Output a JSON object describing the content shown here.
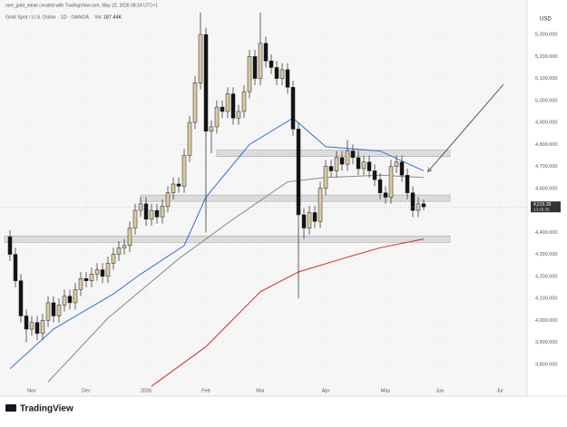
{
  "header": {
    "credit": "rare_gold_steak created with TradingView.com, May 22, 2026 08:14 UTC+1",
    "brand": "TradingView"
  },
  "chart_data": {
    "type": "candlestick",
    "legend": "Gold Spot / U.S. Dollar · 1D · OANDA",
    "volume_label": "Vol",
    "volume": "187.44K",
    "currency": "USD",
    "open": [
      4380,
      4300,
      4180,
      4020,
      3960,
      3990,
      3940,
      4000,
      4080,
      4020,
      4070,
      4110,
      4080,
      4140,
      4190,
      4180,
      4210,
      4230,
      4200,
      4260,
      4300,
      4330,
      4340,
      4420,
      4500,
      4530,
      4460,
      4500,
      4470,
      4520,
      4580,
      4620,
      4610,
      4750,
      4900,
      5080,
      5300,
      4860,
      4880,
      4970,
      4950,
      5030,
      4920,
      4950,
      5040,
      5200,
      5100,
      5260,
      5180,
      5150,
      5100,
      5140,
      5060,
      4870,
      4480,
      4420,
      4490,
      4450,
      4600,
      4700,
      4680,
      4740,
      4710,
      4770,
      4740,
      4690,
      4720,
      4680,
      4640,
      4580,
      4560,
      4700,
      4720,
      4660,
      4580,
      4500,
      4530
    ],
    "high": [
      4410,
      4330,
      4210,
      4050,
      4020,
      4020,
      4030,
      4110,
      4110,
      4100,
      4140,
      4140,
      4170,
      4220,
      4220,
      4240,
      4260,
      4260,
      4290,
      4330,
      4360,
      4370,
      4450,
      4530,
      4560,
      4560,
      4530,
      4530,
      4550,
      4610,
      4650,
      4650,
      4780,
      4930,
      5110,
      5400,
      5330,
      4910,
      5000,
      5000,
      5060,
      5060,
      4980,
      5070,
      5230,
      5230,
      5400,
      5290,
      5210,
      5180,
      5170,
      5170,
      5090,
      4900,
      4510,
      4520,
      4520,
      4630,
      4730,
      4730,
      4770,
      4770,
      4820,
      4800,
      4770,
      4750,
      4750,
      4710,
      4670,
      4610,
      4730,
      4750,
      4750,
      4690,
      4610,
      4560,
      4550
    ],
    "low": [
      4270,
      4150,
      3990,
      3900,
      3930,
      3910,
      3910,
      3970,
      3990,
      3990,
      4040,
      4050,
      4050,
      4110,
      4150,
      4150,
      4180,
      4170,
      4170,
      4230,
      4270,
      4300,
      4310,
      4390,
      4470,
      4430,
      4430,
      4440,
      4440,
      4490,
      4550,
      4580,
      4580,
      4720,
      4870,
      5050,
      4400,
      4760,
      4850,
      4920,
      4920,
      4890,
      4890,
      4920,
      5010,
      5070,
      5070,
      5150,
      5120,
      5070,
      5070,
      5030,
      4840,
      4100,
      4370,
      4390,
      4420,
      4420,
      4570,
      4650,
      4650,
      4680,
      4680,
      4710,
      4660,
      4660,
      4650,
      4610,
      4550,
      4530,
      4530,
      4670,
      4630,
      4550,
      4470,
      4470,
      4500
    ],
    "close": [
      4300,
      4180,
      4020,
      3960,
      3990,
      3940,
      4000,
      4080,
      4020,
      4070,
      4110,
      4080,
      4140,
      4190,
      4180,
      4210,
      4230,
      4200,
      4260,
      4300,
      4330,
      4340,
      4420,
      4500,
      4530,
      4460,
      4500,
      4470,
      4520,
      4580,
      4620,
      4610,
      4750,
      4900,
      5080,
      5300,
      4860,
      4880,
      4970,
      4950,
      5030,
      4920,
      4950,
      5040,
      5200,
      5100,
      5260,
      5180,
      5150,
      5100,
      5140,
      5060,
      4870,
      4480,
      4420,
      4490,
      4450,
      4600,
      4700,
      4680,
      4740,
      4710,
      4770,
      4740,
      4690,
      4720,
      4680,
      4640,
      4580,
      4560,
      4700,
      4720,
      4660,
      4580,
      4500,
      4530,
      4516
    ],
    "up_color": "#d9c9a3",
    "down_color": "#131313",
    "series": [
      {
        "color": "#2f6fdb",
        "x": [
          0,
          8,
          19,
          24,
          32,
          36,
          44,
          52,
          58,
          68,
          76
        ],
        "values": [
          3780,
          3960,
          4120,
          4210,
          4340,
          4560,
          4800,
          4920,
          4790,
          4770,
          4680
        ]
      },
      {
        "color": "#8a8a8a",
        "x": [
          7,
          18,
          31,
          41,
          51,
          58,
          68,
          76
        ],
        "values": [
          3720,
          4010,
          4280,
          4460,
          4630,
          4650,
          4660,
          4650
        ]
      },
      {
        "color": "#d62828",
        "x": [
          26,
          36,
          46,
          53,
          61,
          68,
          76
        ],
        "values": [
          3700,
          3880,
          4130,
          4220,
          4280,
          4330,
          4370
        ]
      }
    ],
    "zones": [
      {
        "from": 38,
        "low": 4745,
        "high": 4774
      },
      {
        "from": 24,
        "low": 4541,
        "high": 4570
      },
      {
        "from": -1,
        "low": 4355,
        "high": 4384
      }
    ],
    "price_tag": {
      "value": 4516,
      "label": "4,516.35",
      "countdown": "13:45:35"
    },
    "xlim": [
      -1,
      95
    ],
    "ylim": [
      3655,
      5457
    ],
    "xticks": [
      {
        "value": 4,
        "label": "Nov"
      },
      {
        "value": 14,
        "label": "Dec"
      },
      {
        "value": 25,
        "label": "2026"
      },
      {
        "value": 36,
        "label": "Feb"
      },
      {
        "value": 46,
        "label": "Mar"
      },
      {
        "value": 58,
        "label": "Apr"
      },
      {
        "value": 69,
        "label": "May"
      },
      {
        "value": 79,
        "label": "Jun"
      },
      {
        "value": 90,
        "label": "Jul"
      }
    ],
    "yticks": [
      {
        "value": 3800,
        "label": "3,800.000"
      },
      {
        "value": 3900,
        "label": "3,900.000"
      },
      {
        "value": 4000,
        "label": "4,000.000"
      },
      {
        "value": 4100,
        "label": "4,100.000"
      },
      {
        "value": 4200,
        "label": "4,200.000"
      },
      {
        "value": 4300,
        "label": "4,300.000"
      },
      {
        "value": 4400,
        "label": "4,400.000"
      },
      {
        "value": 4500,
        "label": "4,500.000"
      },
      {
        "value": 4600,
        "label": "4,600.000"
      },
      {
        "value": 4700,
        "label": "4,700.000"
      },
      {
        "value": 4800,
        "label": "4,800.000"
      },
      {
        "value": 4900,
        "label": "4,900.000"
      },
      {
        "value": 5000,
        "label": "5,000.000"
      },
      {
        "value": 5100,
        "label": "5,100.000"
      },
      {
        "value": 5200,
        "label": "5,200.000"
      },
      {
        "value": 5300,
        "label": "5,300.000"
      }
    ]
  }
}
